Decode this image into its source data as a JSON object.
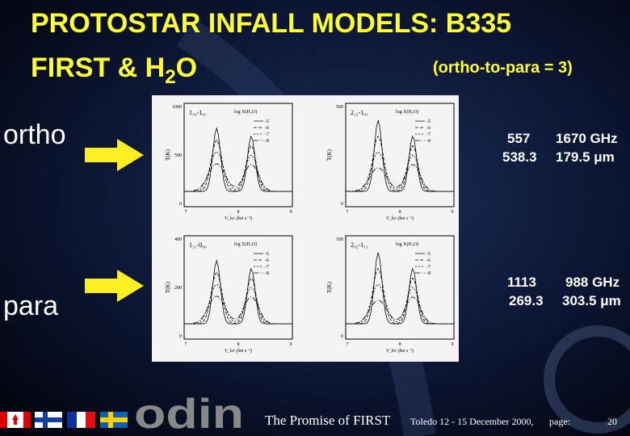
{
  "header": {
    "title_line1": "PROTOSTAR INFALL MODELS: B335",
    "title_line2": [
      "FIRST & H",
      "2",
      "O"
    ],
    "ratio": "(ortho-to-para = 3)"
  },
  "rows": [
    {
      "label": "ortho",
      "freq": [
        "557",
        "1670 GHz"
      ],
      "wave": [
        "538.3",
        "179.5 μm"
      ]
    },
    {
      "label": "para",
      "freq": [
        "1113",
        "988 GHz"
      ],
      "wave": [
        "269.3",
        "303.5 μm"
      ]
    }
  ],
  "figure": {
    "panels": [
      {
        "transition": "1₁₀-1₀₁",
        "yticks": [
          "1000",
          "500",
          "0"
        ]
      },
      {
        "transition": "2₁₂-1₀₁",
        "yticks": [
          "500",
          "0"
        ]
      },
      {
        "transition": "1₁₁-0₀₀",
        "yticks": [
          "400",
          "200",
          "0"
        ]
      },
      {
        "transition": "2₀₂-1₁₁",
        "yticks": [
          "100",
          "0"
        ]
      }
    ],
    "legend_title": "log X(H₂O)",
    "legend": [
      "-5",
      "-6",
      "-7",
      "-8"
    ],
    "xticks": [
      "7",
      "8",
      "9"
    ],
    "xlabel": "V_lsr (km s⁻¹)",
    "ylabel": "T(K)"
  },
  "footer": {
    "logo": "odin",
    "conference": "The Promise of FIRST",
    "place": "Toledo 12 - 15 December 2000,",
    "page_label": "page:",
    "page": "20"
  }
}
